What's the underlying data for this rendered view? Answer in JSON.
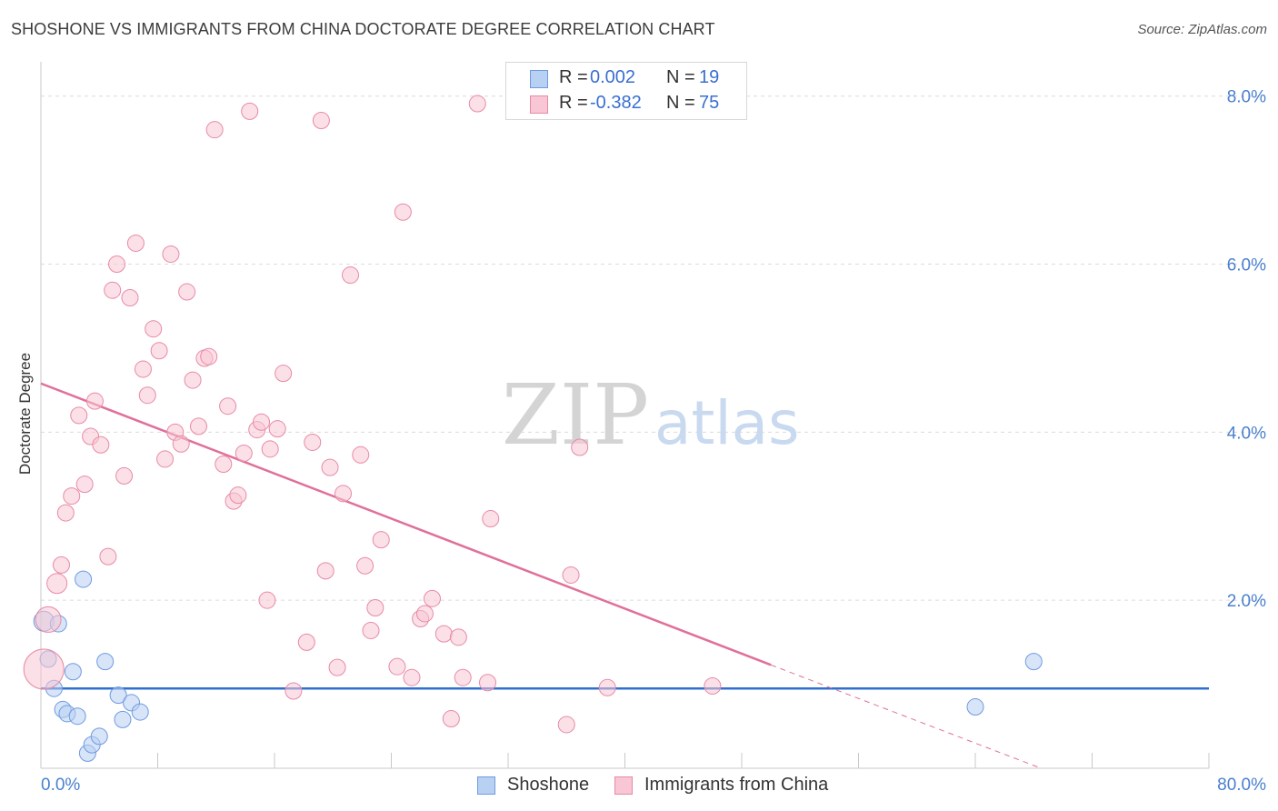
{
  "title": "SHOSHONE VS IMMIGRANTS FROM CHINA DOCTORATE DEGREE CORRELATION CHART",
  "source": "Source: ZipAtlas.com",
  "watermark": {
    "zip": "ZIP",
    "atlas": "atlas"
  },
  "legend": {
    "r_label": "R =",
    "n_label": "N =",
    "rows": [
      {
        "name": "Shoshone",
        "r": "0.002",
        "n": "19",
        "fill": "#b8d0f2",
        "stroke": "#6f9ae0"
      },
      {
        "name": "Immigrants from China",
        "r": "-0.382",
        "n": "75",
        "fill": "#f8c6d4",
        "stroke": "#e88aa5"
      }
    ]
  },
  "chart_data": {
    "type": "scatter",
    "title": "SHOSHONE VS IMMIGRANTS FROM CHINA DOCTORATE DEGREE CORRELATION CHART",
    "xlabel": "",
    "ylabel": "Doctorate Degree",
    "xlim": [
      0,
      80
    ],
    "ylim": [
      0,
      8.3
    ],
    "x_tick_labels": [
      "0.0%",
      "80.0%"
    ],
    "y_ticks": [
      2,
      4,
      6,
      8
    ],
    "y_tick_labels": [
      "2.0%",
      "4.0%",
      "6.0%",
      "8.0%"
    ],
    "grid": true,
    "series": [
      {
        "name": "Shoshone",
        "color": "#6f9ae0",
        "fill": "#b8d0f2",
        "trend": {
          "x": [
            0,
            80
          ],
          "y": [
            0.95,
            0.95
          ],
          "color": "#2f6fd0"
        },
        "points": [
          [
            0.2,
            1.75
          ],
          [
            0.5,
            1.3
          ],
          [
            0.9,
            0.95
          ],
          [
            1.2,
            1.72
          ],
          [
            1.5,
            0.7
          ],
          [
            1.8,
            0.65
          ],
          [
            2.2,
            1.15
          ],
          [
            2.5,
            0.62
          ],
          [
            2.9,
            2.25
          ],
          [
            3.2,
            0.18
          ],
          [
            3.5,
            0.28
          ],
          [
            4.0,
            0.38
          ],
          [
            4.4,
            1.27
          ],
          [
            5.3,
            0.87
          ],
          [
            5.6,
            0.58
          ],
          [
            6.2,
            0.78
          ],
          [
            6.8,
            0.67
          ],
          [
            64.0,
            0.73
          ],
          [
            68.0,
            1.27
          ]
        ],
        "point_sizes": [
          11,
          9,
          9,
          9,
          9,
          9,
          9,
          9,
          9,
          9,
          9,
          9,
          9,
          9,
          9,
          9,
          9,
          9,
          9
        ]
      },
      {
        "name": "Immigrants from China",
        "color": "#e88aa5",
        "fill": "#f8c6d4",
        "trend": {
          "x": [
            0,
            50
          ],
          "y": [
            4.58,
            1.23
          ],
          "dash_to": [
            68.5,
            0.0
          ],
          "color": "#e0709a"
        },
        "points": [
          [
            0.2,
            1.18
          ],
          [
            0.5,
            1.77
          ],
          [
            1.1,
            2.2
          ],
          [
            1.4,
            2.42
          ],
          [
            1.7,
            3.04
          ],
          [
            2.1,
            3.24
          ],
          [
            2.6,
            4.2
          ],
          [
            3.0,
            3.38
          ],
          [
            3.4,
            3.95
          ],
          [
            3.7,
            4.37
          ],
          [
            4.1,
            3.85
          ],
          [
            4.6,
            2.52
          ],
          [
            4.9,
            5.69
          ],
          [
            5.2,
            6.0
          ],
          [
            5.7,
            3.48
          ],
          [
            6.1,
            5.6
          ],
          [
            6.5,
            6.25
          ],
          [
            7.0,
            4.75
          ],
          [
            7.3,
            4.44
          ],
          [
            7.7,
            5.23
          ],
          [
            8.1,
            4.97
          ],
          [
            8.5,
            3.68
          ],
          [
            8.9,
            6.12
          ],
          [
            9.2,
            4.0
          ],
          [
            9.6,
            3.86
          ],
          [
            10.0,
            5.67
          ],
          [
            10.4,
            4.62
          ],
          [
            10.8,
            4.07
          ],
          [
            11.2,
            4.88
          ],
          [
            11.5,
            4.9
          ],
          [
            11.9,
            7.6
          ],
          [
            12.5,
            3.62
          ],
          [
            12.8,
            4.31
          ],
          [
            13.2,
            3.18
          ],
          [
            13.5,
            3.25
          ],
          [
            13.9,
            3.75
          ],
          [
            14.3,
            7.82
          ],
          [
            14.8,
            4.03
          ],
          [
            15.1,
            4.12
          ],
          [
            15.5,
            2.0
          ],
          [
            15.7,
            3.8
          ],
          [
            16.2,
            4.04
          ],
          [
            16.6,
            4.7
          ],
          [
            17.3,
            0.92
          ],
          [
            18.2,
            1.5
          ],
          [
            18.6,
            3.88
          ],
          [
            19.2,
            7.71
          ],
          [
            19.5,
            2.35
          ],
          [
            19.8,
            3.58
          ],
          [
            20.3,
            1.2
          ],
          [
            20.7,
            3.27
          ],
          [
            21.2,
            5.87
          ],
          [
            21.9,
            3.73
          ],
          [
            22.2,
            2.41
          ],
          [
            22.6,
            1.64
          ],
          [
            22.9,
            1.91
          ],
          [
            23.3,
            2.72
          ],
          [
            24.4,
            1.21
          ],
          [
            24.8,
            6.62
          ],
          [
            25.4,
            1.08
          ],
          [
            26.0,
            1.78
          ],
          [
            26.3,
            1.84
          ],
          [
            26.8,
            2.02
          ],
          [
            27.6,
            1.6
          ],
          [
            28.1,
            0.59
          ],
          [
            28.6,
            1.56
          ],
          [
            28.9,
            1.08
          ],
          [
            29.9,
            7.91
          ],
          [
            30.6,
            1.02
          ],
          [
            30.8,
            2.97
          ],
          [
            36.0,
            0.52
          ],
          [
            36.3,
            2.3
          ],
          [
            36.9,
            3.82
          ],
          [
            38.8,
            0.96
          ],
          [
            46.0,
            0.98
          ]
        ],
        "point_sizes": [
          22,
          14,
          11,
          9,
          9,
          9,
          9,
          9,
          9,
          9,
          9,
          9,
          9,
          9,
          9,
          9,
          9,
          9,
          9,
          9,
          9,
          9,
          9,
          9,
          9,
          9,
          9,
          9,
          9,
          9,
          9,
          9,
          9,
          9,
          9,
          9,
          9,
          9,
          9,
          9,
          9,
          9,
          9,
          9,
          9,
          9,
          9,
          9,
          9,
          9,
          9,
          9,
          9,
          9,
          9,
          9,
          9,
          9,
          9,
          9,
          9,
          9,
          9,
          9,
          9,
          9,
          9,
          9,
          9,
          9,
          9,
          9,
          9,
          9,
          9
        ]
      }
    ]
  }
}
